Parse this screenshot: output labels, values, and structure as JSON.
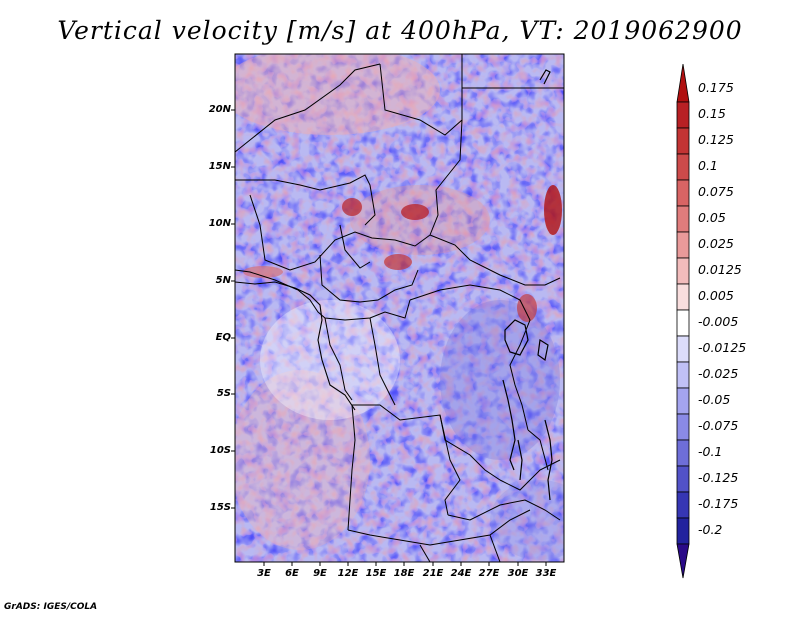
{
  "title": "Vertical velocity [m/s] at 400hPa, VT: 2019062900",
  "credit": "GrADS: IGES/COLA",
  "axes": {
    "x_ticks": [
      "3E",
      "6E",
      "9E",
      "12E",
      "15E",
      "18E",
      "21E",
      "24E",
      "27E",
      "30E",
      "33E"
    ],
    "y_ticks": [
      "20N",
      "15N",
      "10N",
      "5N",
      "EQ",
      "5S",
      "10S",
      "15S"
    ]
  },
  "colorbar": {
    "labels": [
      "0.175",
      "0.15",
      "0.125",
      "0.1",
      "0.075",
      "0.05",
      "0.025",
      "0.0125",
      "0.005",
      "-0.005",
      "-0.0125",
      "-0.025",
      "-0.05",
      "-0.075",
      "-0.1",
      "-0.125",
      "-0.175",
      "-0.2"
    ],
    "colors": [
      "#b01010",
      "#b82024",
      "#c33434",
      "#cd4a4a",
      "#d86464",
      "#e07c7c",
      "#e99a9a",
      "#f2bcbc",
      "#f9dede",
      "#ffffff",
      "#dcdcfa",
      "#c0c0f6",
      "#a4a4ef",
      "#8a8ae6",
      "#6e6ed8",
      "#5252c8",
      "#3636b4",
      "#22229e",
      "#2a0a88"
    ]
  }
}
